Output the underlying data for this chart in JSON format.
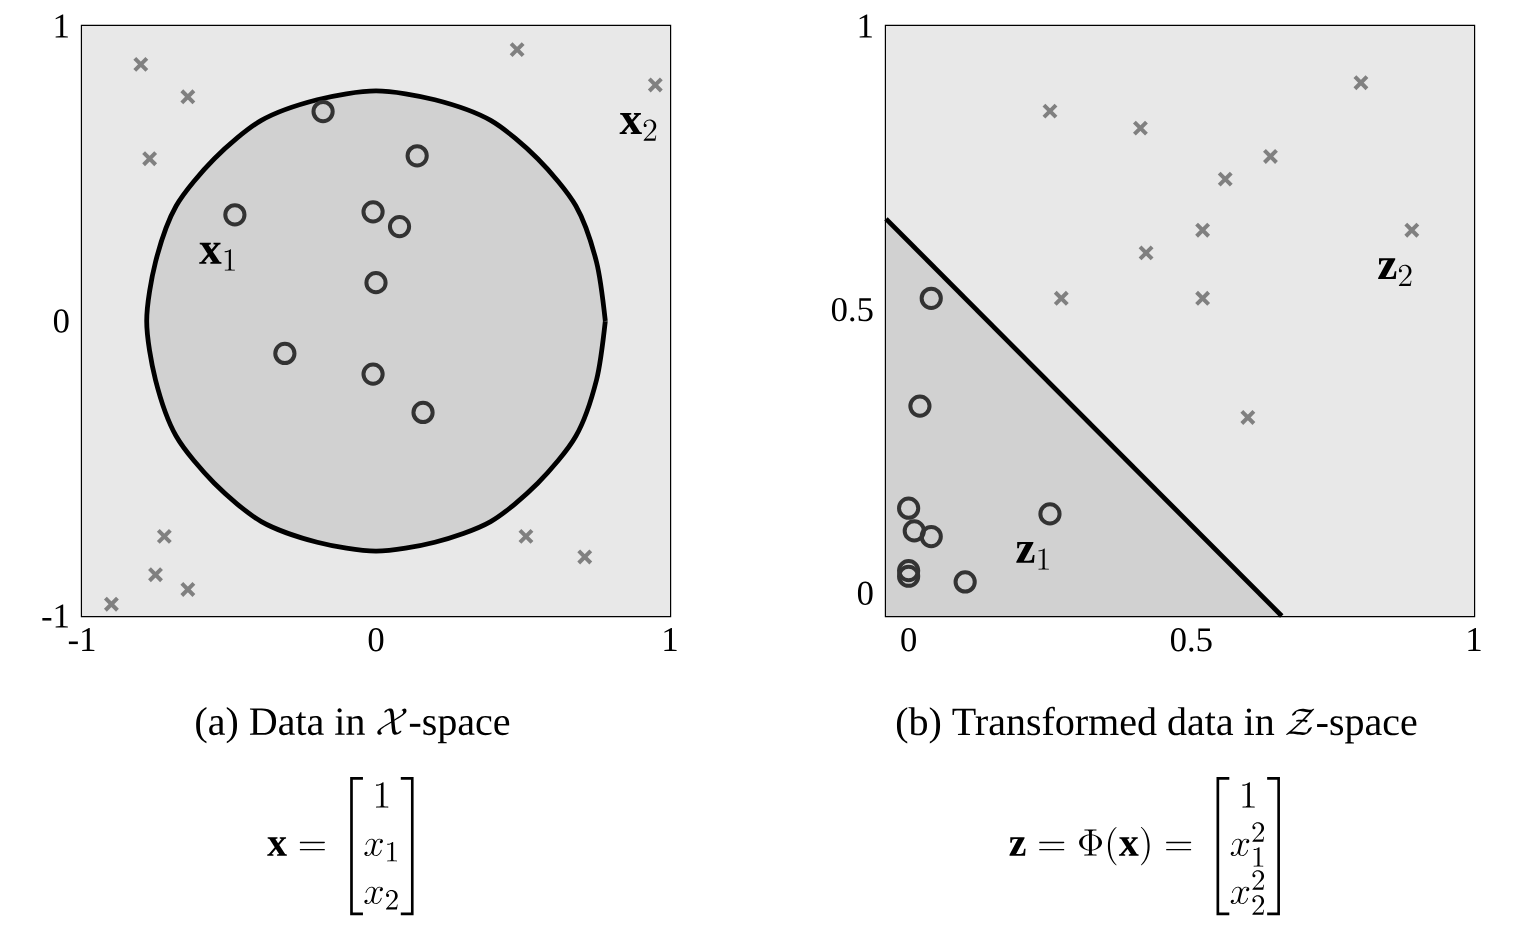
{
  "chart_data": [
    {
      "type": "scatter",
      "xlim": [
        -1,
        1
      ],
      "ylim": [
        -1,
        1
      ],
      "xticks": [
        -1,
        0,
        1
      ],
      "yticks": [
        -1,
        0,
        1
      ],
      "series": [
        {
          "type": "area",
          "color": "#d1d1d1",
          "x": [
            0.78,
            0.75,
            0.68,
            0.55,
            0.39,
            0.2,
            0,
            -0.2,
            -0.39,
            -0.55,
            -0.68,
            -0.75,
            -0.78,
            -0.75,
            -0.68,
            -0.55,
            -0.39,
            -0.2,
            0,
            0.2,
            0.39,
            0.55,
            0.68,
            0.75,
            0.78
          ],
          "values": [
            0,
            0.2,
            0.39,
            0.55,
            0.68,
            0.75,
            0.78,
            0.75,
            0.68,
            0.55,
            0.39,
            0.2,
            0,
            -0.2,
            -0.39,
            -0.55,
            -0.68,
            -0.75,
            -0.78,
            -0.75,
            -0.68,
            -0.55,
            -0.39,
            -0.2,
            0
          ]
        },
        {
          "marker": "circle",
          "color": "#333333",
          "x": [
            -0.18,
            0.14,
            -0.48,
            -0.01,
            0.08,
            0.0,
            -0.31,
            -0.01,
            0.16
          ],
          "values": [
            0.71,
            0.56,
            0.36,
            0.37,
            0.32,
            0.13,
            -0.11,
            -0.18,
            -0.31
          ]
        },
        {
          "marker": "cross",
          "color": "#808080",
          "x": [
            -0.8,
            -0.64,
            -0.77,
            0.48,
            0.95,
            -0.72,
            -0.75,
            -0.64,
            -0.9,
            0.51,
            0.71
          ],
          "values": [
            0.87,
            0.76,
            0.55,
            0.92,
            0.8,
            -0.73,
            -0.86,
            -0.91,
            -0.96,
            -0.73,
            -0.8
          ]
        }
      ],
      "annotations": [
        {
          "text": "\\mathbf{x}_1",
          "x": -0.48,
          "y": 0.36
        },
        {
          "text": "\\mathbf{x}_2",
          "x": 0.95,
          "y": 0.8
        },
        "\\mbox{(a) Data in }\\mathcal{X}\\mbox{-space}",
        "\\mathbf{x}=\\begin{bmatrix}1\\\\x_1\\\\x_2\\end{bmatrix}"
      ]
    },
    {
      "type": "scatter",
      "xlim": [
        -0.04,
        1
      ],
      "ylim": [
        -0.04,
        1
      ],
      "xticks": [
        0,
        0.5,
        1
      ],
      "yticks": [
        0,
        0.5,
        1
      ],
      "series": [
        {
          "type": "line",
          "color": "#000000",
          "x": [
            -0.04,
            0.66
          ],
          "values": [
            0.66,
            -0.04
          ]
        },
        {
          "marker": "circle",
          "color": "#333333",
          "x": [
            0.04,
            0.02,
            0.0,
            0.01,
            0.04,
            0.0,
            0.0,
            0.1,
            0.25
          ],
          "values": [
            0.52,
            0.33,
            0.15,
            0.11,
            0.1,
            0.04,
            0.03,
            0.02,
            0.14
          ]
        },
        {
          "marker": "cross",
          "color": "#808080",
          "x": [
            0.25,
            0.41,
            0.42,
            0.27,
            0.56,
            0.64,
            0.52,
            0.52,
            0.6,
            0.8,
            0.89
          ],
          "values": [
            0.85,
            0.82,
            0.6,
            0.52,
            0.73,
            0.77,
            0.64,
            0.52,
            0.31,
            0.9,
            0.64
          ]
        }
      ],
      "annotations": [
        {
          "text": "\\mathbf{z}_1",
          "x": 0.25,
          "y": 0.14
        },
        {
          "text": "\\mathbf{z}_2",
          "x": 0.89,
          "y": 0.64
        },
        "\\mbox{(b) Transformed data in }\\mathcal{Z}\\mbox{-space}",
        "\\mathbf{z}=\\Phi(\\mathbf{x})=\\begin{bmatrix}1\\\\x_1^2\\\\x_2^2\\end{bmatrix}"
      ]
    }
  ]
}
